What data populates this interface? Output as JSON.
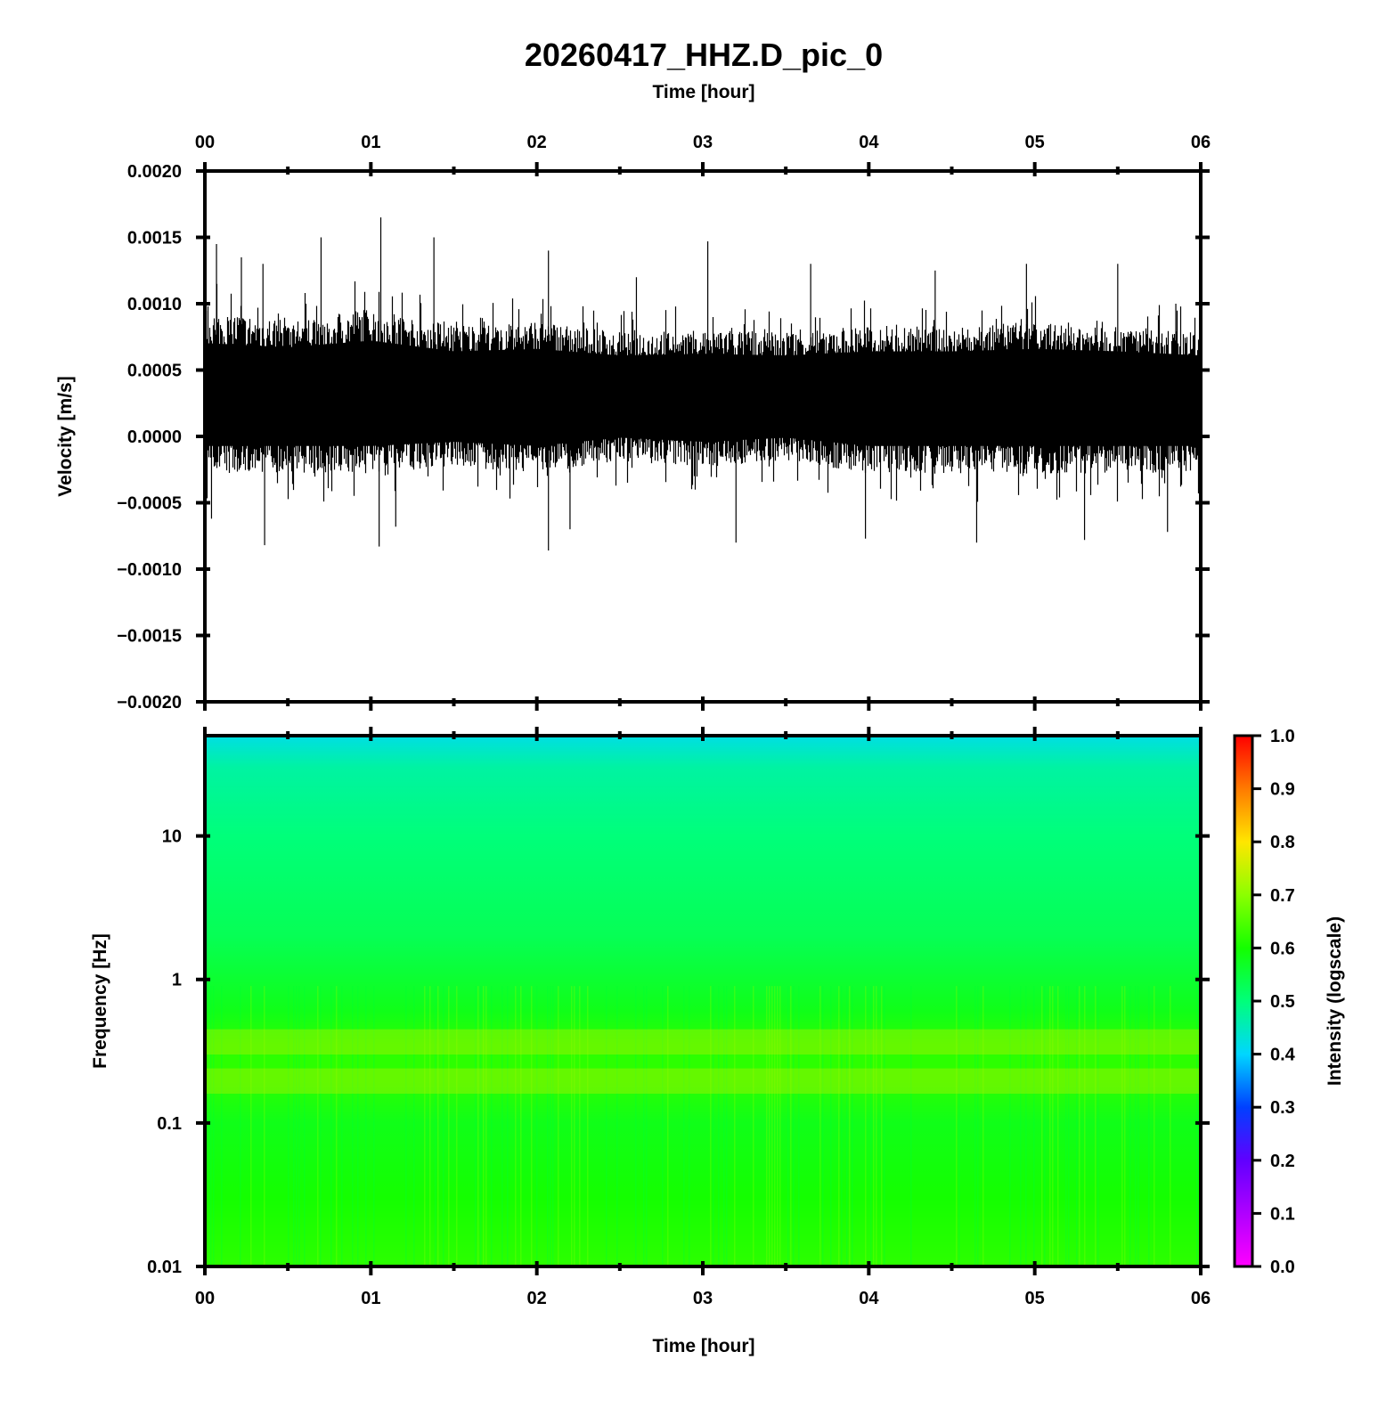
{
  "title": "20260417_HHZ.D_pic_0",
  "colors": {
    "trace": "#000000",
    "spectrogram_low": "#4ef512",
    "spectrogram_mid": "#00ff4c",
    "spectrogram_top": "#00d6ff"
  },
  "chart_data": [
    {
      "type": "line",
      "name": "seismogram",
      "xlabel_top": "Time [hour]",
      "ylabel": "Velocity [m/s]",
      "x_range": [
        0,
        6
      ],
      "ylim": [
        -0.002,
        0.002
      ],
      "x_ticks": [
        "00",
        "01",
        "02",
        "03",
        "04",
        "05",
        "06"
      ],
      "y_ticks": [
        "0.0020",
        "0.0015",
        "0.0010",
        "0.0005",
        "0.0000",
        "−0.0005",
        "−0.0010",
        "−0.0015",
        "−0.0020"
      ],
      "y_tick_values": [
        0.002,
        0.0015,
        0.001,
        0.0005,
        0,
        -0.0005,
        -0.001,
        -0.0015,
        -0.002
      ],
      "baseline": 0.0003,
      "envelope": {
        "x": [
          0,
          0.5,
          1,
          1.5,
          2,
          2.5,
          3,
          3.5,
          4,
          4.5,
          5,
          5.5,
          6
        ],
        "upper": [
          0.00095,
          0.0009,
          0.00098,
          0.00085,
          0.00088,
          0.0008,
          0.00082,
          0.0008,
          0.00085,
          0.00085,
          0.00088,
          0.00085,
          0.0008
        ],
        "lower": [
          -0.0003,
          -0.0003,
          -0.0003,
          -0.00025,
          -0.0003,
          -0.0002,
          -0.00025,
          -0.0002,
          -0.0003,
          -0.0003,
          -0.0003,
          -0.0003,
          -0.0003
        ]
      },
      "peaks": [
        {
          "x": 0.07,
          "y": 0.00145
        },
        {
          "x": 0.22,
          "y": 0.00135
        },
        {
          "x": 0.35,
          "y": 0.0013
        },
        {
          "x": 0.7,
          "y": 0.0015
        },
        {
          "x": 1.06,
          "y": 0.00165
        },
        {
          "x": 1.38,
          "y": 0.0015
        },
        {
          "x": 2.07,
          "y": 0.0014
        },
        {
          "x": 2.6,
          "y": 0.0012
        },
        {
          "x": 3.03,
          "y": 0.00147
        },
        {
          "x": 3.65,
          "y": 0.0013
        },
        {
          "x": 4.4,
          "y": 0.00125
        },
        {
          "x": 4.95,
          "y": 0.0013
        },
        {
          "x": 5.5,
          "y": 0.0013
        },
        {
          "x": 5.85,
          "y": 0.001
        }
      ],
      "troughs": [
        {
          "x": 0.04,
          "y": -0.00062
        },
        {
          "x": 0.36,
          "y": -0.00082
        },
        {
          "x": 1.05,
          "y": -0.00083
        },
        {
          "x": 1.15,
          "y": -0.00068
        },
        {
          "x": 2.07,
          "y": -0.00086
        },
        {
          "x": 2.2,
          "y": -0.0007
        },
        {
          "x": 3.2,
          "y": -0.0008
        },
        {
          "x": 3.98,
          "y": -0.00077
        },
        {
          "x": 4.65,
          "y": -0.0008
        },
        {
          "x": 5.3,
          "y": -0.00078
        },
        {
          "x": 5.8,
          "y": -0.00072
        }
      ]
    },
    {
      "type": "heatmap",
      "name": "spectrogram",
      "xlabel": "Time [hour]",
      "ylabel": "Frequency [Hz]",
      "x_range": [
        0,
        6
      ],
      "y_scale": "log",
      "ylim": [
        0.01,
        50
      ],
      "x_ticks": [
        "00",
        "01",
        "02",
        "03",
        "04",
        "05",
        "06"
      ],
      "y_ticks": [
        "10",
        "1",
        "0.1",
        "0.01"
      ],
      "y_tick_values": [
        10,
        1,
        0.1,
        0.01
      ],
      "intensity_profile": {
        "freq": [
          50,
          30,
          10,
          2,
          1,
          0.6,
          0.35,
          0.2,
          0.1,
          0.03,
          0.01
        ],
        "intensity": [
          0.42,
          0.47,
          0.5,
          0.53,
          0.56,
          0.58,
          0.62,
          0.62,
          0.58,
          0.6,
          0.62
        ]
      },
      "colorbar": {
        "label": "Intensity (logscale)",
        "range": [
          0,
          1
        ],
        "ticks": [
          "1.0",
          "0.9",
          "0.8",
          "0.7",
          "0.6",
          "0.5",
          "0.4",
          "0.3",
          "0.2",
          "0.1",
          "0.0"
        ],
        "tick_values": [
          1,
          0.9,
          0.8,
          0.7,
          0.6,
          0.5,
          0.4,
          0.3,
          0.2,
          0.1,
          0
        ],
        "colormap": [
          {
            "v": 0.0,
            "c": "#ff00ff"
          },
          {
            "v": 0.2,
            "c": "#6000ff"
          },
          {
            "v": 0.3,
            "c": "#0040ff"
          },
          {
            "v": 0.4,
            "c": "#00d6ff"
          },
          {
            "v": 0.5,
            "c": "#00ff7a"
          },
          {
            "v": 0.6,
            "c": "#14ff00"
          },
          {
            "v": 0.7,
            "c": "#8cff00"
          },
          {
            "v": 0.8,
            "c": "#ffe600"
          },
          {
            "v": 0.9,
            "c": "#ff7a00"
          },
          {
            "v": 1.0,
            "c": "#ff0000"
          }
        ]
      }
    }
  ]
}
